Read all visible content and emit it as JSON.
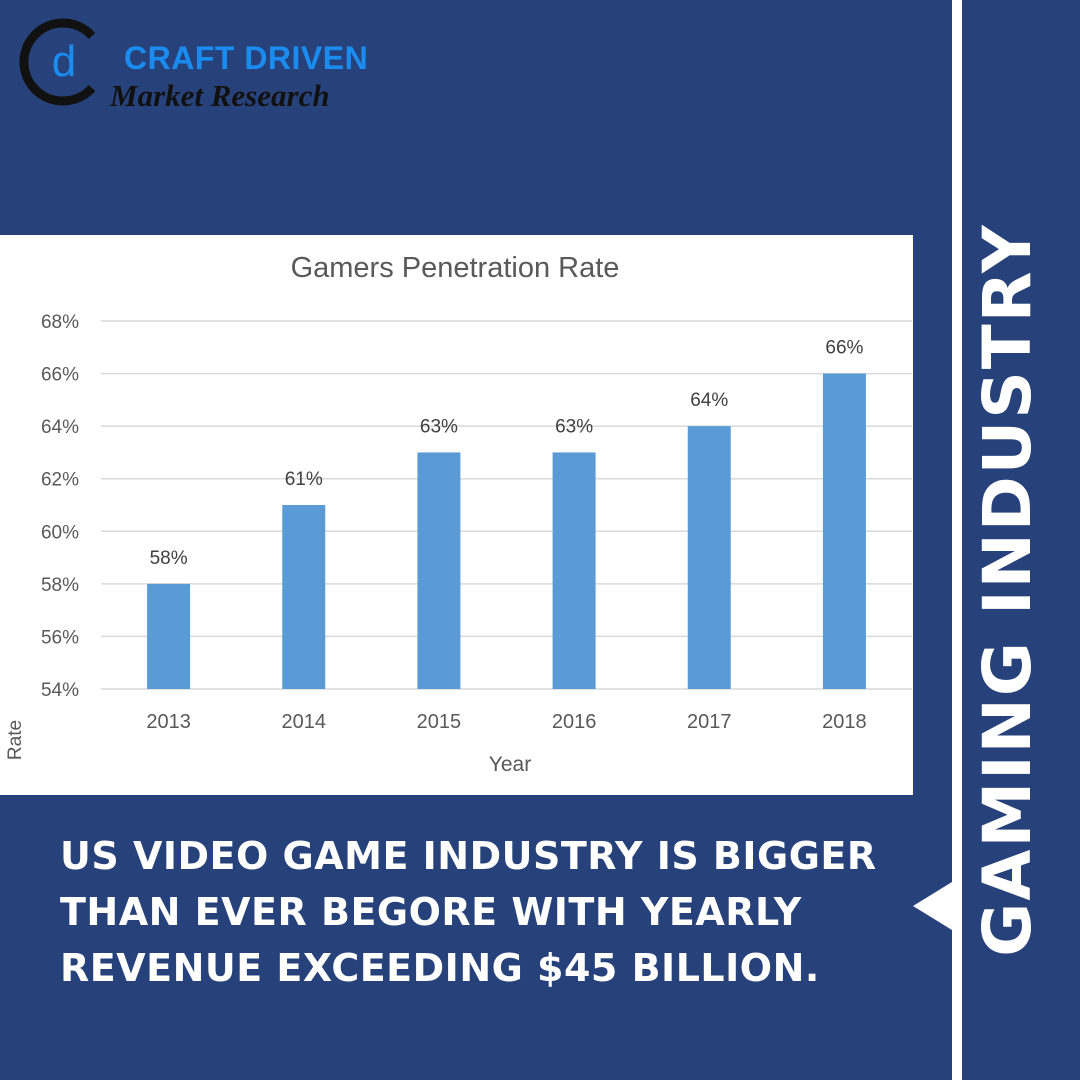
{
  "brand": {
    "line1": "CRAFT DRIVEN",
    "line2": "Market Research",
    "logo_letter": "d"
  },
  "side_title": "GAMING INDUSTRY",
  "headline": [
    "US VIDEO GAME INDUSTRY IS BIGGER",
    "THAN EVER BEGORE WITH YEARLY",
    "REVENUE EXCEEDING $45 BILLION."
  ],
  "colors": {
    "background": "#27427a",
    "bar": "#5b9bd5",
    "brand_blue": "#1a8cf0"
  },
  "chart_data": {
    "type": "bar",
    "title": "Gamers Penetration Rate",
    "xlabel": "Year",
    "ylabel": "Rate",
    "categories": [
      "2013",
      "2014",
      "2015",
      "2016",
      "2017",
      "2018"
    ],
    "values": [
      58,
      61,
      63,
      63,
      64,
      66
    ],
    "data_labels": [
      "58%",
      "61%",
      "63%",
      "63%",
      "64%",
      "66%"
    ],
    "ylim": [
      54,
      68
    ],
    "yticks": [
      54,
      56,
      58,
      60,
      62,
      64,
      66,
      68
    ],
    "ytick_labels": [
      "54%",
      "56%",
      "58%",
      "60%",
      "62%",
      "64%",
      "66%",
      "68%"
    ],
    "grid": true,
    "legend": "none"
  }
}
